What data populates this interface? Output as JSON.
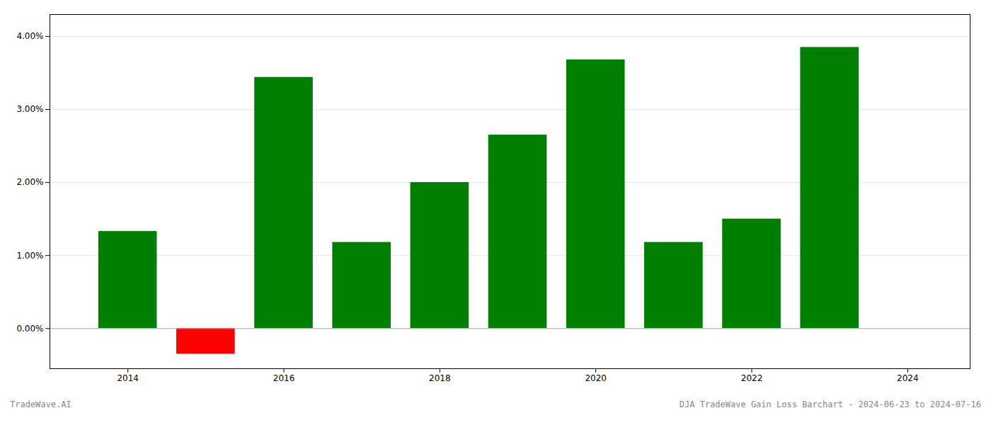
{
  "chart_data": {
    "type": "bar",
    "x": [
      2014,
      2015,
      2016,
      2017,
      2018,
      2019,
      2020,
      2021,
      2022,
      2023,
      2024
    ],
    "values": [
      1.33,
      -0.35,
      3.44,
      1.18,
      2.0,
      2.65,
      3.68,
      1.18,
      1.5,
      3.85,
      0.0
    ],
    "colors": [
      "#008000",
      "#ff0000",
      "#008000",
      "#008000",
      "#008000",
      "#008000",
      "#008000",
      "#008000",
      "#008000",
      "#008000",
      "#008000"
    ],
    "xlim": [
      2013.0,
      2024.8
    ],
    "xticks": [
      2014,
      2016,
      2018,
      2020,
      2022,
      2024
    ],
    "ylim": [
      -0.55,
      4.3
    ],
    "yticks": [
      {
        "value": 0.0,
        "label": "0.00%"
      },
      {
        "value": 1.0,
        "label": "1.00%"
      },
      {
        "value": 2.0,
        "label": "2.00%"
      },
      {
        "value": 3.0,
        "label": "3.00%"
      },
      {
        "value": 4.0,
        "label": "4.00%"
      }
    ],
    "grid": true,
    "annotations": [
      "TradeWave.AI",
      "DJA TradeWave Gain Loss Barchart - 2024-06-23 to 2024-07-16"
    ]
  }
}
